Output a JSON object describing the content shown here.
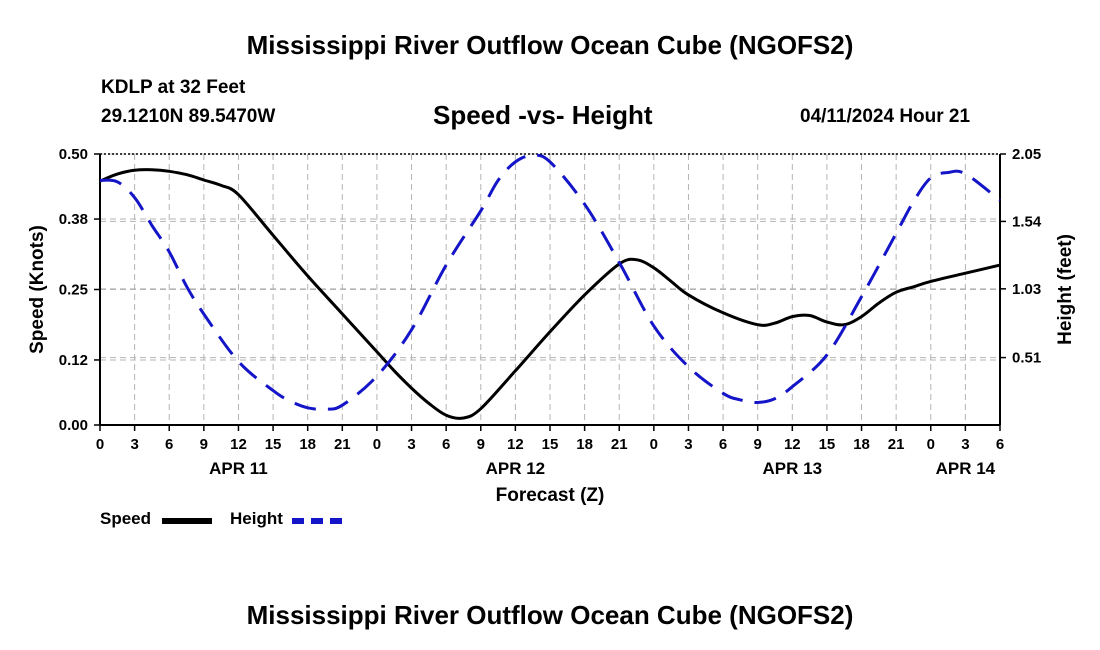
{
  "page": {
    "title": "Mississippi River Outflow Ocean Cube (NGOFS2)",
    "station": "KDLP at 32 Feet",
    "coords": "29.1210N  89.5470W",
    "subtitle": "Speed -vs- Height",
    "datetime": "04/11/2024 Hour 21",
    "footer_title": "Mississippi River Outflow Ocean Cube (NGOFS2)"
  },
  "legend": {
    "speed_label": "Speed",
    "height_label": "Height"
  },
  "colors": {
    "speed": "#000000",
    "height": "#1414c8",
    "grid": "#b4b4b4"
  },
  "chart_data": {
    "type": "line",
    "title": "Speed -vs- Height",
    "xlabel": "Forecast (Z)",
    "ylabel": "Speed (Knots)",
    "y2label": "Height (feet)",
    "x_range": [
      0,
      78
    ],
    "x_tick_labels": [
      "0",
      "3",
      "6",
      "9",
      "12",
      "15",
      "18",
      "21",
      "0",
      "3",
      "6",
      "9",
      "12",
      "15",
      "18",
      "21",
      "0",
      "3",
      "6",
      "9",
      "12",
      "15",
      "18",
      "21",
      "0",
      "3",
      "6"
    ],
    "date_labels": [
      {
        "label": "APR 11",
        "hour": 12
      },
      {
        "label": "APR 12",
        "hour": 36
      },
      {
        "label": "APR 13",
        "hour": 60
      },
      {
        "label": "APR 14",
        "hour": 75
      }
    ],
    "ylim": [
      0,
      0.5
    ],
    "y_ticks": [
      "0.00",
      "0.12",
      "0.25",
      "0.38",
      "0.50"
    ],
    "y2lim": [
      0,
      2.05
    ],
    "y2_ticks": [
      "0.51",
      "1.03",
      "1.54",
      "2.05"
    ],
    "series": [
      {
        "name": "Speed",
        "axis": "left",
        "style": "solid",
        "x": [
          0,
          1.5,
          3,
          4.5,
          6,
          7.5,
          9,
          10.5,
          12,
          15,
          18,
          21,
          24,
          25.5,
          27,
          28.5,
          30,
          31.5,
          33,
          36,
          39,
          42,
          45,
          46.5,
          48,
          49.5,
          51,
          54,
          57,
          58.5,
          60,
          61.5,
          63,
          64.5,
          66,
          67.5,
          69,
          70.5,
          72,
          75,
          78
        ],
        "values": [
          0.45,
          0.463,
          0.47,
          0.471,
          0.468,
          0.462,
          0.452,
          0.442,
          0.425,
          0.35,
          0.275,
          0.205,
          0.135,
          0.1,
          0.068,
          0.04,
          0.018,
          0.013,
          0.03,
          0.1,
          0.172,
          0.24,
          0.297,
          0.305,
          0.29,
          0.265,
          0.24,
          0.207,
          0.185,
          0.188,
          0.2,
          0.202,
          0.19,
          0.185,
          0.2,
          0.225,
          0.245,
          0.255,
          0.265,
          0.28,
          0.295
        ]
      },
      {
        "name": "Height",
        "axis": "right",
        "style": "dashed",
        "x": [
          0,
          1.5,
          3,
          4.5,
          6,
          7.5,
          9,
          12,
          15,
          16.5,
          18,
          19.5,
          21,
          24,
          27,
          30,
          33,
          34.5,
          36,
          37.5,
          39,
          42,
          45,
          48,
          51,
          54,
          55.5,
          57,
          58.5,
          60,
          63,
          66,
          69,
          70.5,
          72,
          73.5,
          75,
          78
        ],
        "values": [
          1.85,
          1.84,
          1.72,
          1.51,
          1.31,
          1.05,
          0.84,
          0.48,
          0.26,
          0.18,
          0.13,
          0.12,
          0.15,
          0.37,
          0.72,
          1.21,
          1.62,
          1.85,
          1.99,
          2.04,
          1.99,
          1.67,
          1.23,
          0.75,
          0.44,
          0.24,
          0.19,
          0.17,
          0.2,
          0.29,
          0.53,
          0.97,
          1.45,
          1.69,
          1.87,
          1.91,
          1.9,
          1.7
        ]
      }
    ]
  }
}
